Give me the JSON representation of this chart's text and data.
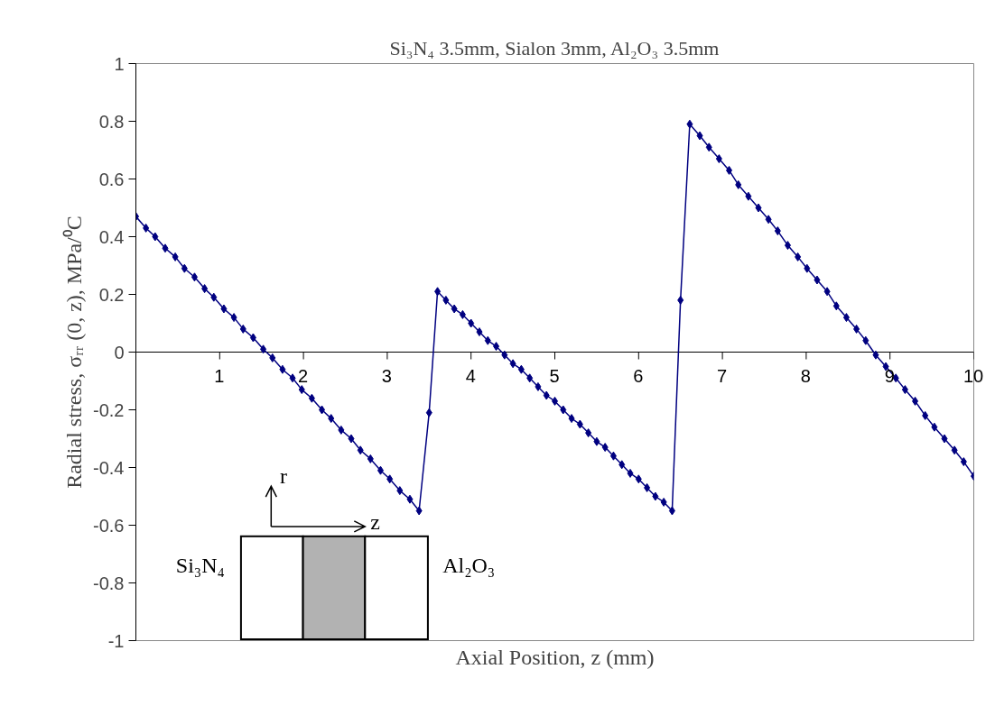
{
  "chart_data": {
    "type": "line",
    "title": "Si₃N₄ 3.5mm, Sialon 3mm, Al₂O₃ 3.5mm",
    "xlabel": "Axial Position, z (mm)",
    "ylabel": "Radial stress, σᵣᵣ (0, z), MPa/⁰C",
    "series": [
      {
        "color": "#000080",
        "x": [
          0,
          0.12,
          0.23,
          0.35,
          0.47,
          0.58,
          0.7,
          0.82,
          0.93,
          1.05,
          1.17,
          1.28,
          1.4,
          1.52,
          1.63,
          1.75,
          1.87,
          1.98,
          2.1,
          2.22,
          2.33,
          2.45,
          2.57,
          2.68,
          2.8,
          2.92,
          3.03,
          3.15,
          3.27,
          3.38,
          3.5,
          3.6,
          3.7,
          3.8,
          3.9,
          4.0,
          4.1,
          4.2,
          4.3,
          4.4,
          4.5,
          4.6,
          4.7,
          4.8,
          4.9,
          5.0,
          5.1,
          5.2,
          5.3,
          5.4,
          5.5,
          5.6,
          5.7,
          5.8,
          5.9,
          6.0,
          6.1,
          6.2,
          6.3,
          6.4,
          6.5,
          6.61,
          6.73,
          6.84,
          6.96,
          7.08,
          7.19,
          7.31,
          7.43,
          7.55,
          7.66,
          7.78,
          7.9,
          8.01,
          8.13,
          8.25,
          8.36,
          8.48,
          8.6,
          8.71,
          8.83,
          8.95,
          9.07,
          9.18,
          9.3,
          9.42,
          9.53,
          9.65,
          9.77,
          9.88,
          10.0
        ],
        "values": [
          0.47,
          0.43,
          0.4,
          0.36,
          0.33,
          0.29,
          0.26,
          0.22,
          0.19,
          0.15,
          0.12,
          0.08,
          0.05,
          0.01,
          -0.02,
          -0.06,
          -0.09,
          -0.13,
          -0.16,
          -0.2,
          -0.23,
          -0.27,
          -0.3,
          -0.34,
          -0.37,
          -0.41,
          -0.44,
          -0.48,
          -0.51,
          -0.55,
          -0.21,
          0.21,
          0.18,
          0.15,
          0.13,
          0.1,
          0.07,
          0.04,
          0.02,
          -0.01,
          -0.04,
          -0.06,
          -0.09,
          -0.12,
          -0.15,
          -0.17,
          -0.2,
          -0.23,
          -0.25,
          -0.28,
          -0.31,
          -0.33,
          -0.36,
          -0.39,
          -0.42,
          -0.44,
          -0.47,
          -0.5,
          -0.52,
          -0.55,
          0.18,
          0.79,
          0.75,
          0.71,
          0.67,
          0.63,
          0.58,
          0.54,
          0.5,
          0.46,
          0.42,
          0.37,
          0.33,
          0.29,
          0.25,
          0.21,
          0.16,
          0.12,
          0.08,
          0.04,
          -0.01,
          -0.05,
          -0.09,
          -0.13,
          -0.17,
          -0.22,
          -0.26,
          -0.3,
          -0.34,
          -0.38,
          -0.43
        ]
      }
    ],
    "xlim": [
      0,
      10
    ],
    "xticks": [
      1,
      2,
      3,
      4,
      5,
      6,
      7,
      8,
      9,
      10
    ],
    "ylim": [
      -1,
      1
    ],
    "yticks": [
      -1,
      -0.8,
      -0.6,
      -0.4,
      -0.2,
      0,
      0.2,
      0.4,
      0.6,
      0.8,
      1
    ],
    "marker": "diamond",
    "line_style": "solid",
    "grid": false,
    "annotations": [
      "Si₃N₄",
      "Al₂O₃",
      "r",
      "z"
    ]
  }
}
